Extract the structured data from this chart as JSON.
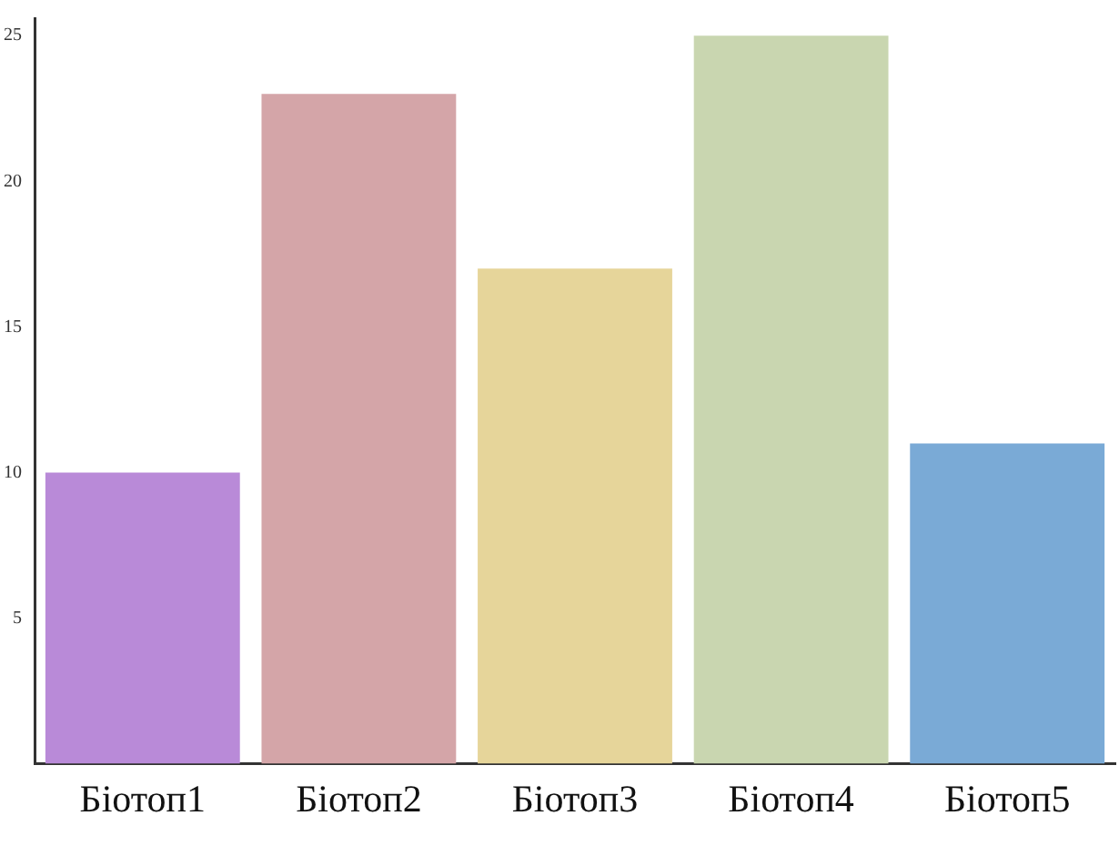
{
  "chart_data": {
    "type": "bar",
    "categories": [
      "Біотоп1",
      "Біотоп2",
      "Біотоп3",
      "Біотоп4",
      "Біотоп5"
    ],
    "values": [
      10,
      23,
      17,
      25,
      11
    ],
    "colors": [
      "#b98ad8",
      "#d4a5a8",
      "#e6d59a",
      "#c9d6b0",
      "#7aaad6"
    ],
    "ylim": [
      0,
      25.6
    ],
    "yticks": [
      5,
      10,
      15,
      20,
      25
    ],
    "grid": false
  }
}
